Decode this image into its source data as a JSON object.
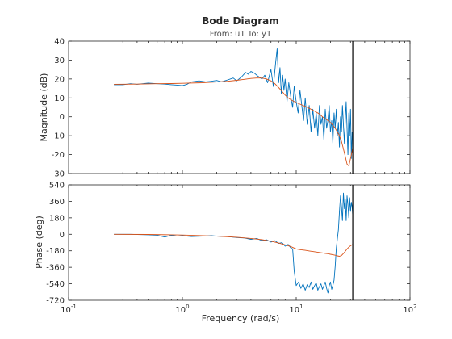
{
  "chart_data": {
    "type": "line",
    "title": "Bode Diagram",
    "subtitle": "From: u1  To: y1",
    "xlabel": "Frequency  (rad/s)",
    "x_scale": "log",
    "xlim": [
      0.1,
      100
    ],
    "x_ticks": [
      {
        "value": 0.1,
        "base": "10",
        "exp": "-1"
      },
      {
        "value": 1,
        "base": "10",
        "exp": "0"
      },
      {
        "value": 10,
        "base": "10",
        "exp": "1"
      },
      {
        "value": 100,
        "base": "10",
        "exp": "2"
      }
    ],
    "vline_x": 31.4,
    "colors": {
      "estimate": "#0072BD",
      "model": "#D95319",
      "axes": "#262626",
      "vline": "#000000"
    },
    "panels": [
      {
        "name": "magnitude",
        "ylabel": "Magnitude (dB)",
        "ylim": [
          -30,
          40
        ],
        "yticks": [
          -30,
          -20,
          -10,
          0,
          10,
          20,
          30,
          40
        ],
        "series": [
          {
            "key": "estimate",
            "x": [
              0.25,
              0.3,
              0.35,
              0.4,
              0.5,
              0.6,
              0.7,
              0.8,
              0.9,
              1.0,
              1.1,
              1.2,
              1.4,
              1.6,
              1.8,
              2.0,
              2.2,
              2.5,
              2.8,
              3.0,
              3.3,
              3.6,
              3.8,
              4.0,
              4.3,
              4.6,
              5.0,
              5.3,
              5.6,
              6.0,
              6.3,
              6.6,
              6.8,
              7.0,
              7.2,
              7.4,
              7.6,
              7.8,
              8.0,
              8.3,
              8.6,
              9.0,
              9.3,
              9.6,
              10.0,
              10.4,
              10.8,
              11.2,
              11.6,
              12.0,
              12.5,
              13.0,
              13.5,
              14.0,
              14.5,
              15.0,
              15.5,
              16.0,
              16.5,
              17.0,
              17.5,
              18.0,
              18.5,
              19.0,
              19.5,
              20.0,
              20.5,
              21.0,
              21.5,
              22.0,
              22.5,
              23.0,
              23.5,
              24.0,
              24.5,
              25.0,
              25.5,
              26.0,
              26.5,
              27.0,
              27.5,
              28.0,
              28.5,
              29.0,
              29.5,
              30.0,
              30.5,
              31.0,
              31.4
            ],
            "y": [
              17,
              17,
              17.5,
              17.2,
              17.8,
              17.5,
              17.3,
              17.0,
              16.8,
              16.5,
              17.2,
              18.5,
              19.0,
              18.5,
              18.8,
              19.2,
              18.5,
              19.5,
              20.5,
              19.0,
              21.0,
              23.5,
              22.5,
              24.0,
              23.0,
              21.5,
              20.0,
              22.0,
              18.0,
              25.0,
              16.0,
              29.0,
              36.0,
              18.0,
              26.0,
              12.0,
              22.0,
              14.0,
              20.0,
              8.0,
              18.0,
              10.0,
              5.0,
              16.0,
              8.0,
              2.0,
              14.0,
              6.0,
              -2.0,
              10.0,
              -4.0,
              6.0,
              -8.0,
              4.0,
              -6.0,
              2.0,
              -10.0,
              6.0,
              -4.0,
              0.0,
              -12.0,
              4.0,
              -6.0,
              -2.0,
              6.0,
              -8.0,
              -2.0,
              -14.0,
              2.0,
              -6.0,
              4.0,
              -10.0,
              -3.0,
              -16.0,
              0.0,
              -8.0,
              6.0,
              -4.0,
              -14.0,
              -2.0,
              8.0,
              -6.0,
              -20.0,
              2.0,
              -10.0,
              4.0,
              -22.0,
              -8.0,
              -14.0
            ]
          },
          {
            "key": "model",
            "x": [
              0.25,
              0.4,
              0.6,
              0.8,
              1.0,
              1.5,
              2.0,
              2.5,
              3.0,
              3.5,
              4.0,
              4.5,
              5.0,
              5.5,
              6.0,
              6.5,
              7.0,
              7.5,
              8.0,
              8.5,
              9.0,
              10.0,
              11.0,
              12.0,
              13.0,
              14.0,
              15.0,
              16.0,
              17.0,
              18.0,
              19.0,
              20.0,
              21.0,
              22.0,
              23.0,
              24.0,
              25.0,
              26.0,
              27.0,
              28.0,
              29.0,
              30.0,
              31.0,
              31.4
            ],
            "y": [
              17.2,
              17.3,
              17.5,
              17.6,
              17.7,
              18.0,
              18.4,
              18.8,
              19.3,
              19.8,
              20.3,
              20.5,
              20.5,
              20.0,
              19.0,
              17.5,
              15.5,
              13.5,
              11.5,
              10.0,
              9.0,
              7.5,
              6.5,
              5.5,
              4.5,
              3.5,
              2.5,
              1.5,
              0.0,
              -1.0,
              -2.0,
              -3.0,
              -4.5,
              -6.0,
              -8.0,
              -10.0,
              -13.0,
              -17.0,
              -21.0,
              -25.0,
              -26.0,
              -22.0,
              -18.0,
              -16.0
            ]
          }
        ]
      },
      {
        "name": "phase",
        "ylabel": "Phase (deg)",
        "ylim": [
          -720,
          540
        ],
        "yticks": [
          -720,
          -540,
          -360,
          -180,
          0,
          180,
          360,
          540
        ],
        "series": [
          {
            "key": "estimate",
            "x": [
              0.25,
              0.35,
              0.5,
              0.6,
              0.7,
              0.8,
              0.9,
              1.0,
              1.2,
              1.5,
              1.8,
              2.0,
              2.5,
              3.0,
              3.5,
              4.0,
              4.5,
              5.0,
              5.5,
              6.0,
              6.5,
              7.0,
              7.5,
              8.0,
              8.5,
              9.0,
              9.3,
              9.6,
              10.0,
              10.5,
              11.0,
              11.5,
              12.0,
              12.5,
              13.0,
              13.5,
              14.0,
              14.5,
              15.0,
              15.5,
              16.0,
              16.5,
              17.0,
              17.5,
              18.0,
              18.5,
              19.0,
              19.5,
              20.0,
              20.5,
              21.0,
              21.5,
              22.0,
              22.5,
              23.0,
              23.5,
              24.0,
              24.5,
              25.0,
              25.5,
              26.0,
              26.5,
              27.0,
              27.5,
              28.0,
              28.5,
              29.0,
              29.5,
              30.0,
              30.5,
              31.0,
              31.4
            ],
            "y": [
              0,
              0,
              -5,
              -10,
              -30,
              -10,
              -20,
              -15,
              -25,
              -20,
              -15,
              -20,
              -25,
              -35,
              -40,
              -55,
              -45,
              -70,
              -60,
              -85,
              -70,
              -100,
              -90,
              -130,
              -110,
              -150,
              -160,
              -400,
              -560,
              -520,
              -590,
              -540,
              -610,
              -550,
              -580,
              -520,
              -600,
              -560,
              -530,
              -610,
              -570,
              -540,
              -600,
              -560,
              -520,
              -590,
              -640,
              -560,
              -520,
              -600,
              -560,
              -500,
              -350,
              -150,
              -50,
              50,
              250,
              420,
              300,
              150,
              450,
              280,
              380,
              150,
              420,
              320,
              180,
              400,
              250,
              350,
              300,
              200
            ]
          },
          {
            "key": "model",
            "x": [
              0.25,
              0.5,
              0.8,
              1.0,
              1.5,
              2.0,
              3.0,
              4.0,
              5.0,
              6.0,
              7.0,
              8.0,
              9.0,
              10.0,
              11.0,
              12.0,
              13.0,
              14.0,
              15.0,
              16.0,
              17.0,
              18.0,
              19.0,
              20.0,
              21.0,
              22.0,
              23.0,
              24.0,
              25.0,
              26.0,
              27.0,
              28.0,
              29.0,
              30.0,
              31.0,
              31.4
            ],
            "y": [
              0,
              -2,
              -5,
              -8,
              -14,
              -20,
              -32,
              -45,
              -58,
              -75,
              -95,
              -115,
              -135,
              -160,
              -168,
              -175,
              -182,
              -188,
              -193,
              -198,
              -203,
              -208,
              -212,
              -218,
              -223,
              -228,
              -235,
              -240,
              -232,
              -210,
              -185,
              -160,
              -140,
              -125,
              -115,
              -110
            ]
          }
        ]
      }
    ]
  }
}
